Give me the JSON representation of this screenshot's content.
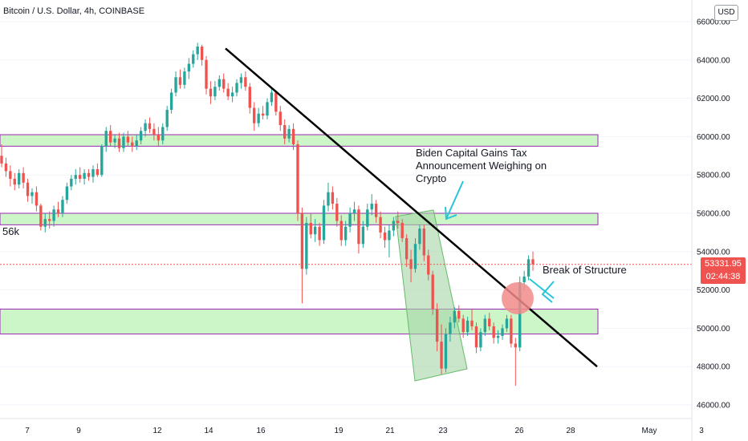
{
  "header": {
    "title": "Bitcoin / U.S. Dollar, 4h, COINBASE",
    "currency_button": "USD"
  },
  "annotations": {
    "news": [
      "Biden Capital Gains Tax",
      "Announcement Weighing on",
      "Crypto"
    ],
    "break": "Break of Structure",
    "level": "56k"
  },
  "last_price": {
    "price": "53331.95",
    "countdown": "02:44:38"
  },
  "colors": {
    "up": "#26a69a",
    "down": "#ef5350",
    "zone_fill": "#ccf5c8",
    "zone_border": "#9c27b0",
    "trendline": "#000000",
    "channel_fill": "#a5d6a7",
    "arrow": "#26c6da",
    "circle": "#f28b8b"
  },
  "chart_data": {
    "type": "candlestick",
    "title": "Bitcoin / U.S. Dollar, 4h, COINBASE",
    "timeframe": "4h",
    "currency": "USD",
    "ylim": [
      45500,
      66500
    ],
    "y_ticks": [
      "66000.00",
      "64000.00",
      "62000.00",
      "60000.00",
      "58000.00",
      "56000.00",
      "54000.00",
      "52000.00",
      "50000.00",
      "48000.00",
      "46000.00"
    ],
    "x_ticks": [
      "7",
      "9",
      "12",
      "14",
      "16",
      "19",
      "21",
      "23",
      "26",
      "28",
      "May",
      "3"
    ],
    "zones": [
      {
        "low": 59500,
        "high": 60100
      },
      {
        "low": 55400,
        "high": 56000
      },
      {
        "low": 49700,
        "high": 51000
      }
    ],
    "trendline": {
      "start_price": 64600,
      "end_price": 48000
    },
    "last_price": 53331.95,
    "candles": [
      [
        59000,
        59600,
        58400,
        58600
      ],
      [
        58600,
        58900,
        57900,
        58200
      ],
      [
        58200,
        58500,
        57400,
        57800
      ],
      [
        57800,
        58100,
        57200,
        57500
      ],
      [
        57500,
        58300,
        57300,
        58100
      ],
      [
        58100,
        58400,
        57300,
        57600
      ],
      [
        57600,
        57800,
        56600,
        56900
      ],
      [
        56900,
        57300,
        56500,
        57100
      ],
      [
        57100,
        57400,
        56100,
        56400
      ],
      [
        56400,
        56500,
        55100,
        55300
      ],
      [
        55300,
        56000,
        55000,
        55700
      ],
      [
        55700,
        56100,
        55200,
        55600
      ],
      [
        55600,
        56400,
        55300,
        56200
      ],
      [
        56200,
        56600,
        55800,
        56000
      ],
      [
        56000,
        56900,
        55800,
        56700
      ],
      [
        56700,
        57600,
        56500,
        57400
      ],
      [
        57400,
        58000,
        57200,
        57800
      ],
      [
        57800,
        58300,
        57500,
        58000
      ],
      [
        58000,
        58400,
        57600,
        57800
      ],
      [
        57800,
        58300,
        57500,
        58100
      ],
      [
        58100,
        58300,
        57700,
        57900
      ],
      [
        57900,
        58500,
        57600,
        58300
      ],
      [
        58300,
        58600,
        57900,
        58000
      ],
      [
        58000,
        59600,
        57900,
        59500
      ],
      [
        59500,
        60500,
        59200,
        60300
      ],
      [
        60300,
        60600,
        59500,
        59700
      ],
      [
        59700,
        60100,
        59400,
        59900
      ],
      [
        59900,
        60200,
        59200,
        59400
      ],
      [
        59400,
        60200,
        59200,
        60000
      ],
      [
        60000,
        60300,
        59500,
        59700
      ],
      [
        59700,
        60000,
        59200,
        59500
      ],
      [
        59500,
        60100,
        59300,
        59800
      ],
      [
        59800,
        60500,
        59600,
        60300
      ],
      [
        60300,
        60900,
        60000,
        60700
      ],
      [
        60700,
        61000,
        60200,
        60400
      ],
      [
        60400,
        60700,
        59800,
        60100
      ],
      [
        60100,
        60500,
        59500,
        59800
      ],
      [
        59800,
        60700,
        59600,
        60500
      ],
      [
        60500,
        61600,
        60300,
        61400
      ],
      [
        61400,
        62500,
        61200,
        62300
      ],
      [
        62300,
        63400,
        62100,
        63100
      ],
      [
        63100,
        63500,
        62500,
        62700
      ],
      [
        62700,
        63600,
        62500,
        63400
      ],
      [
        63400,
        64100,
        63000,
        63800
      ],
      [
        63800,
        64500,
        63600,
        64300
      ],
      [
        64300,
        64900,
        64000,
        64700
      ],
      [
        64700,
        64800,
        63700,
        64000
      ],
      [
        64000,
        64200,
        62200,
        62500
      ],
      [
        62500,
        62900,
        61700,
        62100
      ],
      [
        62100,
        62900,
        61900,
        62600
      ],
      [
        62600,
        63200,
        62400,
        63000
      ],
      [
        63000,
        63300,
        62300,
        62500
      ],
      [
        62500,
        62800,
        61900,
        62100
      ],
      [
        62100,
        62600,
        61800,
        62300
      ],
      [
        62300,
        63000,
        62100,
        62800
      ],
      [
        62800,
        63300,
        62500,
        63100
      ],
      [
        63100,
        63400,
        62400,
        62600
      ],
      [
        62600,
        62800,
        61200,
        61500
      ],
      [
        61500,
        61800,
        60300,
        60700
      ],
      [
        60700,
        61500,
        60500,
        61200
      ],
      [
        61200,
        61600,
        60900,
        61100
      ],
      [
        61100,
        62000,
        60900,
        61800
      ],
      [
        61800,
        62500,
        61600,
        62300
      ],
      [
        62300,
        62400,
        61100,
        61300
      ],
      [
        61300,
        61600,
        60300,
        60600
      ],
      [
        60600,
        60900,
        59600,
        59900
      ],
      [
        59900,
        60600,
        59700,
        60400
      ],
      [
        60400,
        60700,
        59300,
        59600
      ],
      [
        59600,
        59800,
        55600,
        56000
      ],
      [
        56000,
        56300,
        51300,
        53100
      ],
      [
        53100,
        55800,
        52800,
        55500
      ],
      [
        55500,
        56000,
        54700,
        54900
      ],
      [
        54900,
        55700,
        54500,
        55300
      ],
      [
        55300,
        55500,
        54300,
        54600
      ],
      [
        54600,
        56700,
        54400,
        56400
      ],
      [
        56400,
        57600,
        56100,
        57100
      ],
      [
        57100,
        57400,
        56200,
        56500
      ],
      [
        56500,
        56800,
        55300,
        55600
      ],
      [
        55600,
        55900,
        54300,
        54600
      ],
      [
        54600,
        55600,
        54300,
        55300
      ],
      [
        55300,
        56300,
        55000,
        56000
      ],
      [
        56000,
        56600,
        55600,
        56200
      ],
      [
        56200,
        56400,
        53900,
        54400
      ],
      [
        54400,
        55600,
        54200,
        55300
      ],
      [
        55300,
        56500,
        55100,
        56200
      ],
      [
        56200,
        57000,
        55900,
        56500
      ],
      [
        56500,
        56700,
        55500,
        55800
      ],
      [
        55800,
        56100,
        54700,
        55000
      ],
      [
        55000,
        55300,
        54200,
        54600
      ],
      [
        54600,
        55400,
        53700,
        55100
      ],
      [
        55100,
        55800,
        54800,
        55600
      ],
      [
        55600,
        56100,
        55200,
        55500
      ],
      [
        55500,
        55700,
        54500,
        54700
      ],
      [
        54700,
        54900,
        53200,
        53600
      ],
      [
        53600,
        54100,
        52400,
        53100
      ],
      [
        53100,
        54700,
        52900,
        54400
      ],
      [
        54400,
        55400,
        54100,
        55200
      ],
      [
        55200,
        55400,
        53500,
        53800
      ],
      [
        53800,
        54100,
        52500,
        52800
      ],
      [
        52800,
        53000,
        50700,
        51000
      ],
      [
        51000,
        51300,
        48800,
        49300
      ],
      [
        49300,
        50200,
        47600,
        47900
      ],
      [
        47900,
        50000,
        47700,
        49700
      ],
      [
        49700,
        50600,
        49300,
        50300
      ],
      [
        50300,
        51100,
        50000,
        50900
      ],
      [
        50900,
        51200,
        50300,
        50500
      ],
      [
        50500,
        50700,
        49500,
        49800
      ],
      [
        49800,
        50600,
        49600,
        50400
      ],
      [
        50400,
        51000,
        49900,
        50100
      ],
      [
        50100,
        50300,
        48700,
        49000
      ],
      [
        49000,
        50000,
        48800,
        49800
      ],
      [
        49800,
        50700,
        49600,
        50500
      ],
      [
        50500,
        50800,
        49900,
        50100
      ],
      [
        50100,
        50300,
        49200,
        49500
      ],
      [
        49500,
        49900,
        49200,
        49600
      ],
      [
        49600,
        50200,
        49400,
        50000
      ],
      [
        50000,
        50700,
        49800,
        50500
      ],
      [
        50500,
        50700,
        49000,
        49200
      ],
      [
        49200,
        49500,
        47000,
        49000
      ],
      [
        49000,
        52700,
        48800,
        52400
      ],
      [
        52400,
        53000,
        52000,
        52700
      ],
      [
        52700,
        53800,
        52500,
        53600
      ],
      [
        53600,
        54000,
        53000,
        53332
      ]
    ]
  }
}
